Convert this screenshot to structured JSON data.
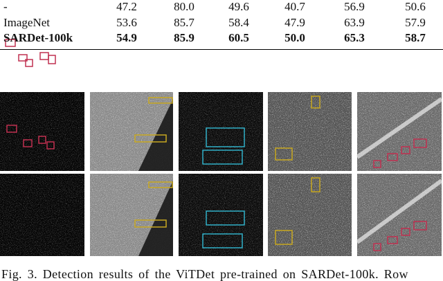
{
  "table": {
    "rows": [
      {
        "label": "-",
        "values": [
          "47.2",
          "80.0",
          "49.6",
          "40.7",
          "56.9",
          "50.6"
        ],
        "bold": false
      },
      {
        "label": "ImageNet",
        "values": [
          "53.6",
          "85.7",
          "58.4",
          "47.9",
          "63.9",
          "57.9"
        ],
        "bold": false
      },
      {
        "label": "SARDet-100k",
        "values": [
          "54.9",
          "85.9",
          "60.5",
          "50.0",
          "65.3",
          "58.7"
        ],
        "bold": true
      }
    ]
  },
  "figure": {
    "caption": "Fig. 3.  Detection results of the ViTDet pre-trained on SARDet-100k. Row"
  }
}
